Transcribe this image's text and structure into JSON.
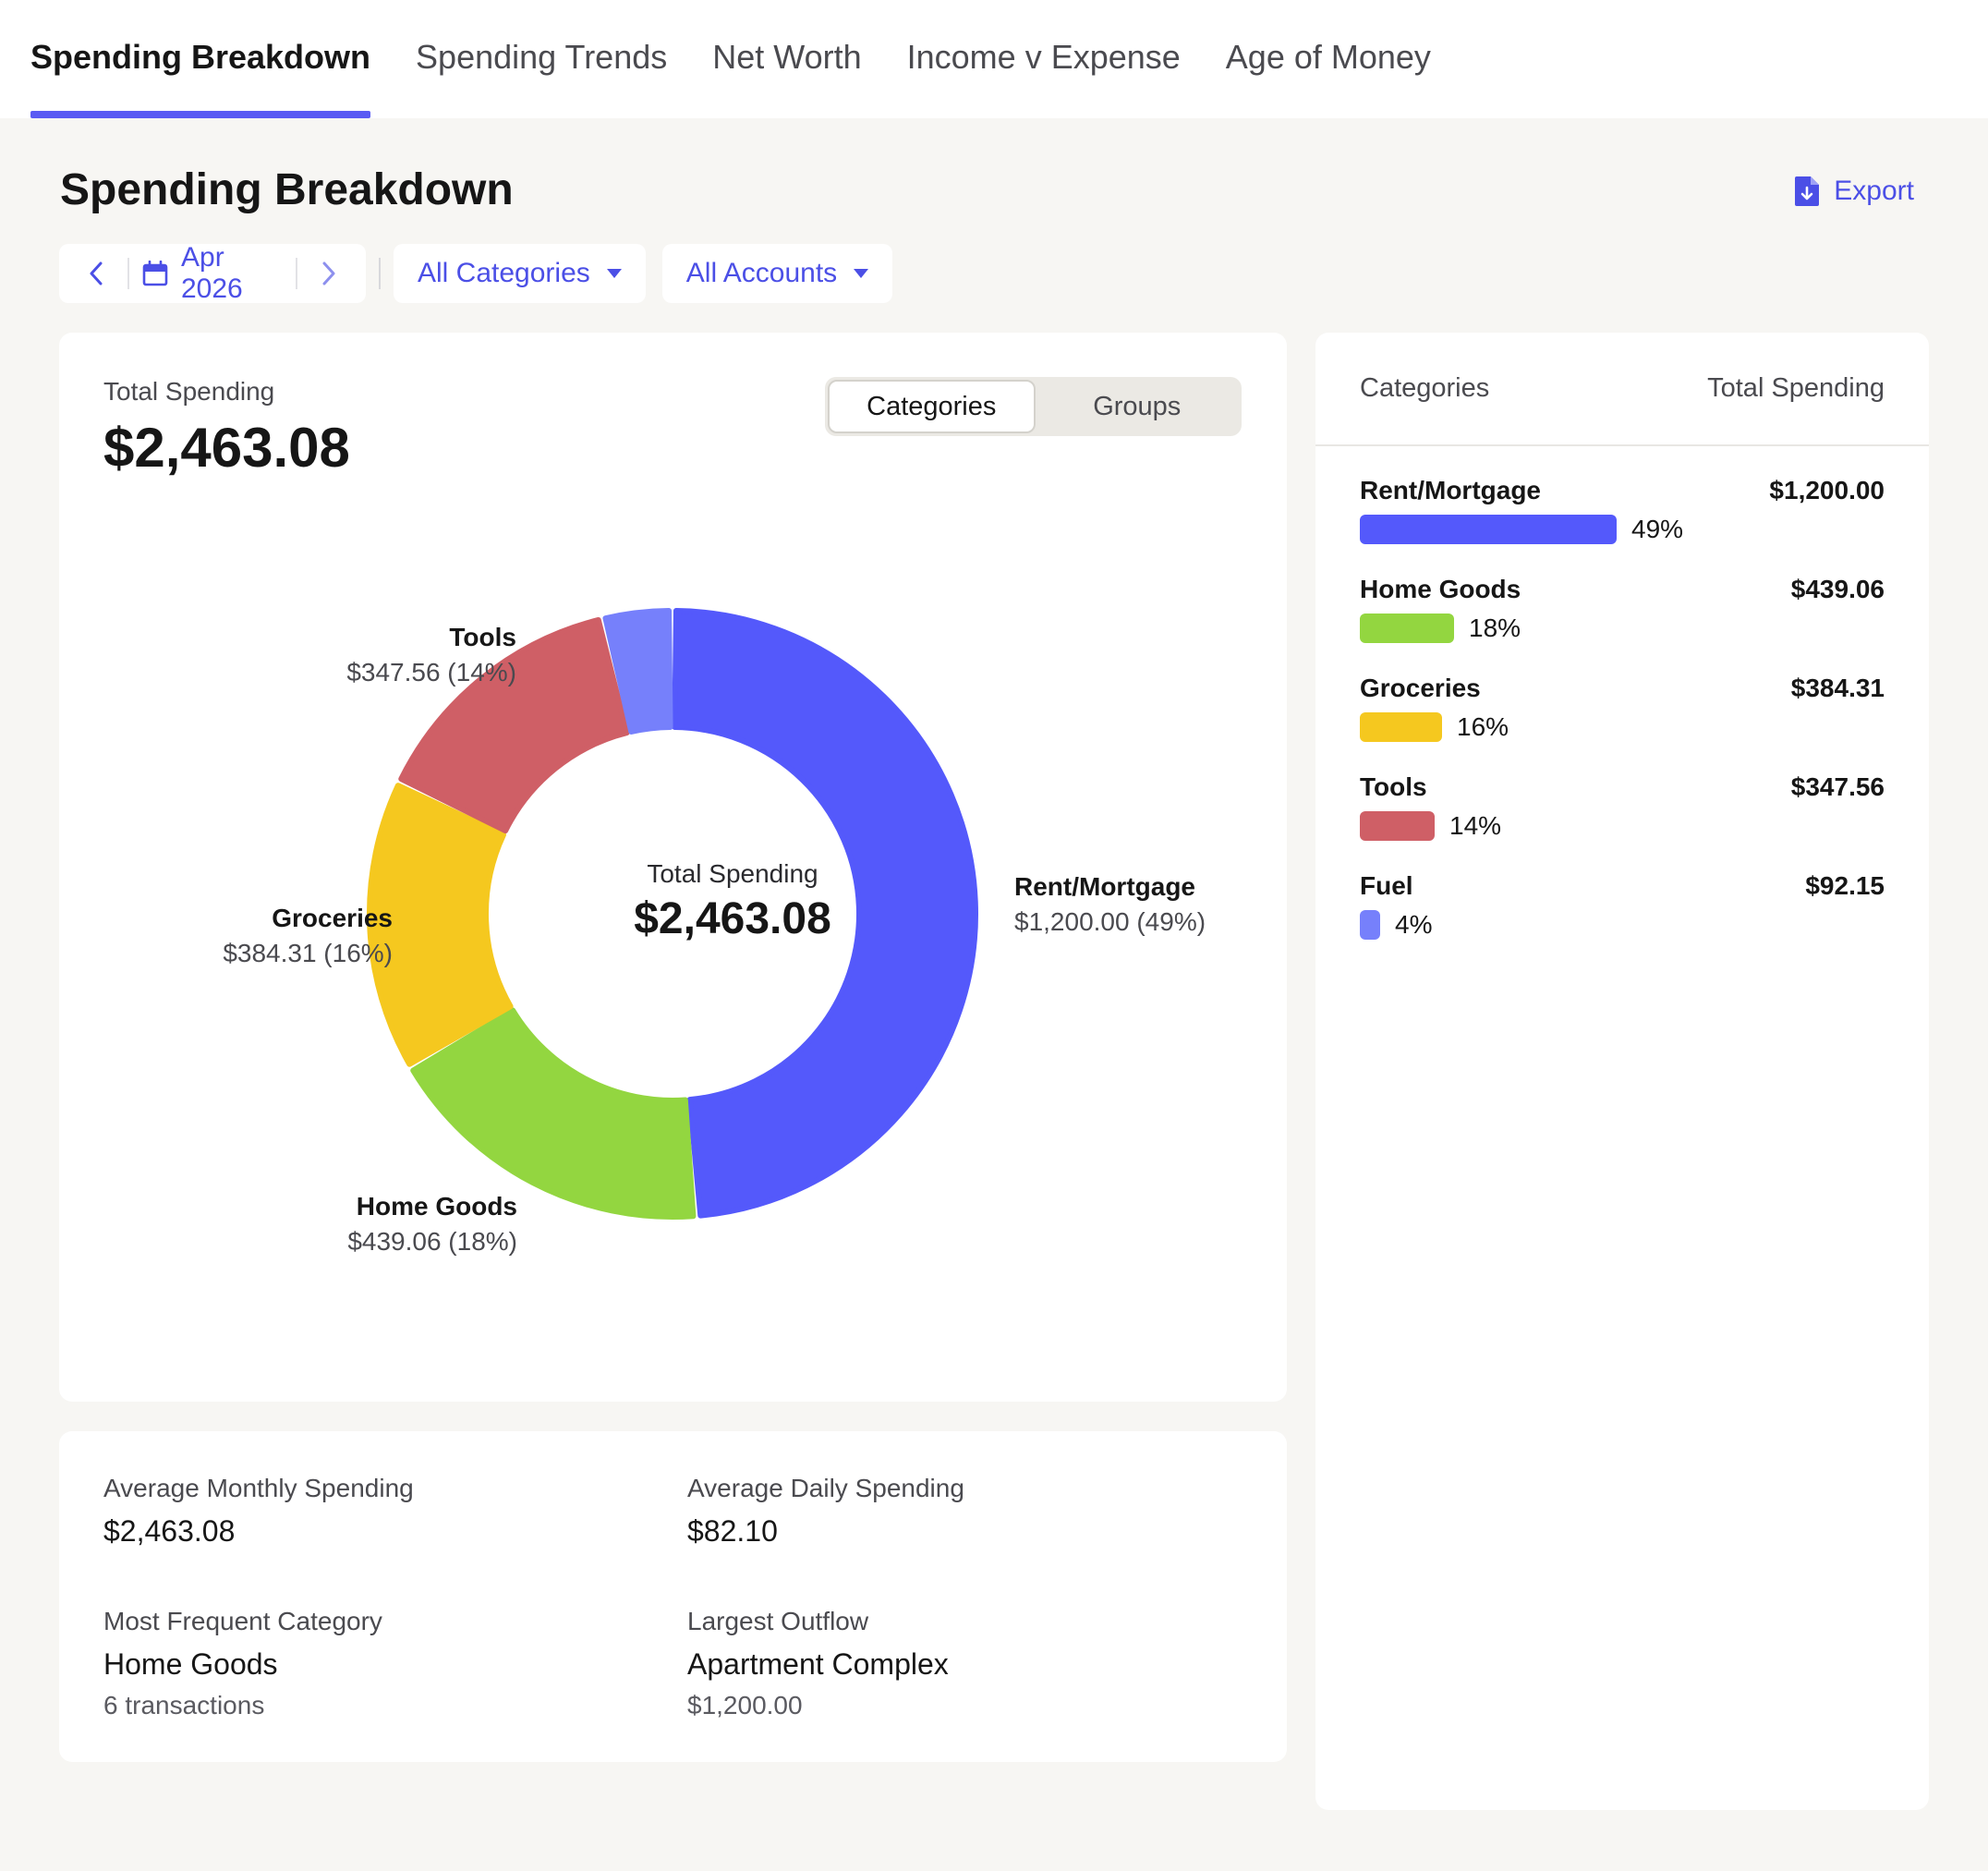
{
  "tabs": [
    {
      "label": "Spending Breakdown",
      "active": true
    },
    {
      "label": "Spending Trends",
      "active": false
    },
    {
      "label": "Net Worth",
      "active": false
    },
    {
      "label": "Income v Expense",
      "active": false
    },
    {
      "label": "Age of Money",
      "active": false
    }
  ],
  "header": {
    "title": "Spending Breakdown",
    "export_label": "Export"
  },
  "filters": {
    "date": "Apr 2026",
    "categories": "All Categories",
    "accounts": "All Accounts"
  },
  "summary": {
    "total_label": "Total Spending",
    "total_value": "$2,463.08"
  },
  "toggle": {
    "categories": "Categories",
    "groups": "Groups",
    "selected": "Categories"
  },
  "donut": {
    "center_label": "Total Spending",
    "center_value": "$2,463.08"
  },
  "chart_data": {
    "type": "pie",
    "style": "donut",
    "total": 2463.08,
    "slices": [
      {
        "name": "Rent/Mortgage",
        "value": 1200.0,
        "value_text": "$1,200.00",
        "percent_text": "49%",
        "color": "#5459fb"
      },
      {
        "name": "Home Goods",
        "value": 439.06,
        "value_text": "$439.06",
        "percent_text": "18%",
        "color": "#93d640"
      },
      {
        "name": "Groceries",
        "value": 384.31,
        "value_text": "$384.31",
        "percent_text": "16%",
        "color": "#f5c81f"
      },
      {
        "name": "Tools",
        "value": 347.56,
        "value_text": "$347.56",
        "percent_text": "14%",
        "color": "#cf5f66"
      },
      {
        "name": "Fuel",
        "value": 92.15,
        "value_text": "$92.15",
        "percent_text": "4%",
        "color": "#7680fb"
      }
    ],
    "slice_labels": [
      {
        "name": "Rent/Mortgage",
        "detail": "$1,200.00 (49%)"
      },
      {
        "name": "Home Goods",
        "detail": "$439.06 (18%)"
      },
      {
        "name": "Groceries",
        "detail": "$384.31 (16%)"
      },
      {
        "name": "Tools",
        "detail": "$347.56 (14%)"
      }
    ]
  },
  "list": {
    "col_categories": "Categories",
    "col_total": "Total Spending"
  },
  "stats": {
    "avg_monthly_label": "Average Monthly Spending",
    "avg_monthly_value": "$2,463.08",
    "avg_daily_label": "Average Daily Spending",
    "avg_daily_value": "$82.10",
    "frequent_label": "Most Frequent Category",
    "frequent_value": "Home Goods",
    "frequent_sub": "6 transactions",
    "outflow_label": "Largest Outflow",
    "outflow_value": "Apartment Complex",
    "outflow_sub": "$1,200.00"
  }
}
